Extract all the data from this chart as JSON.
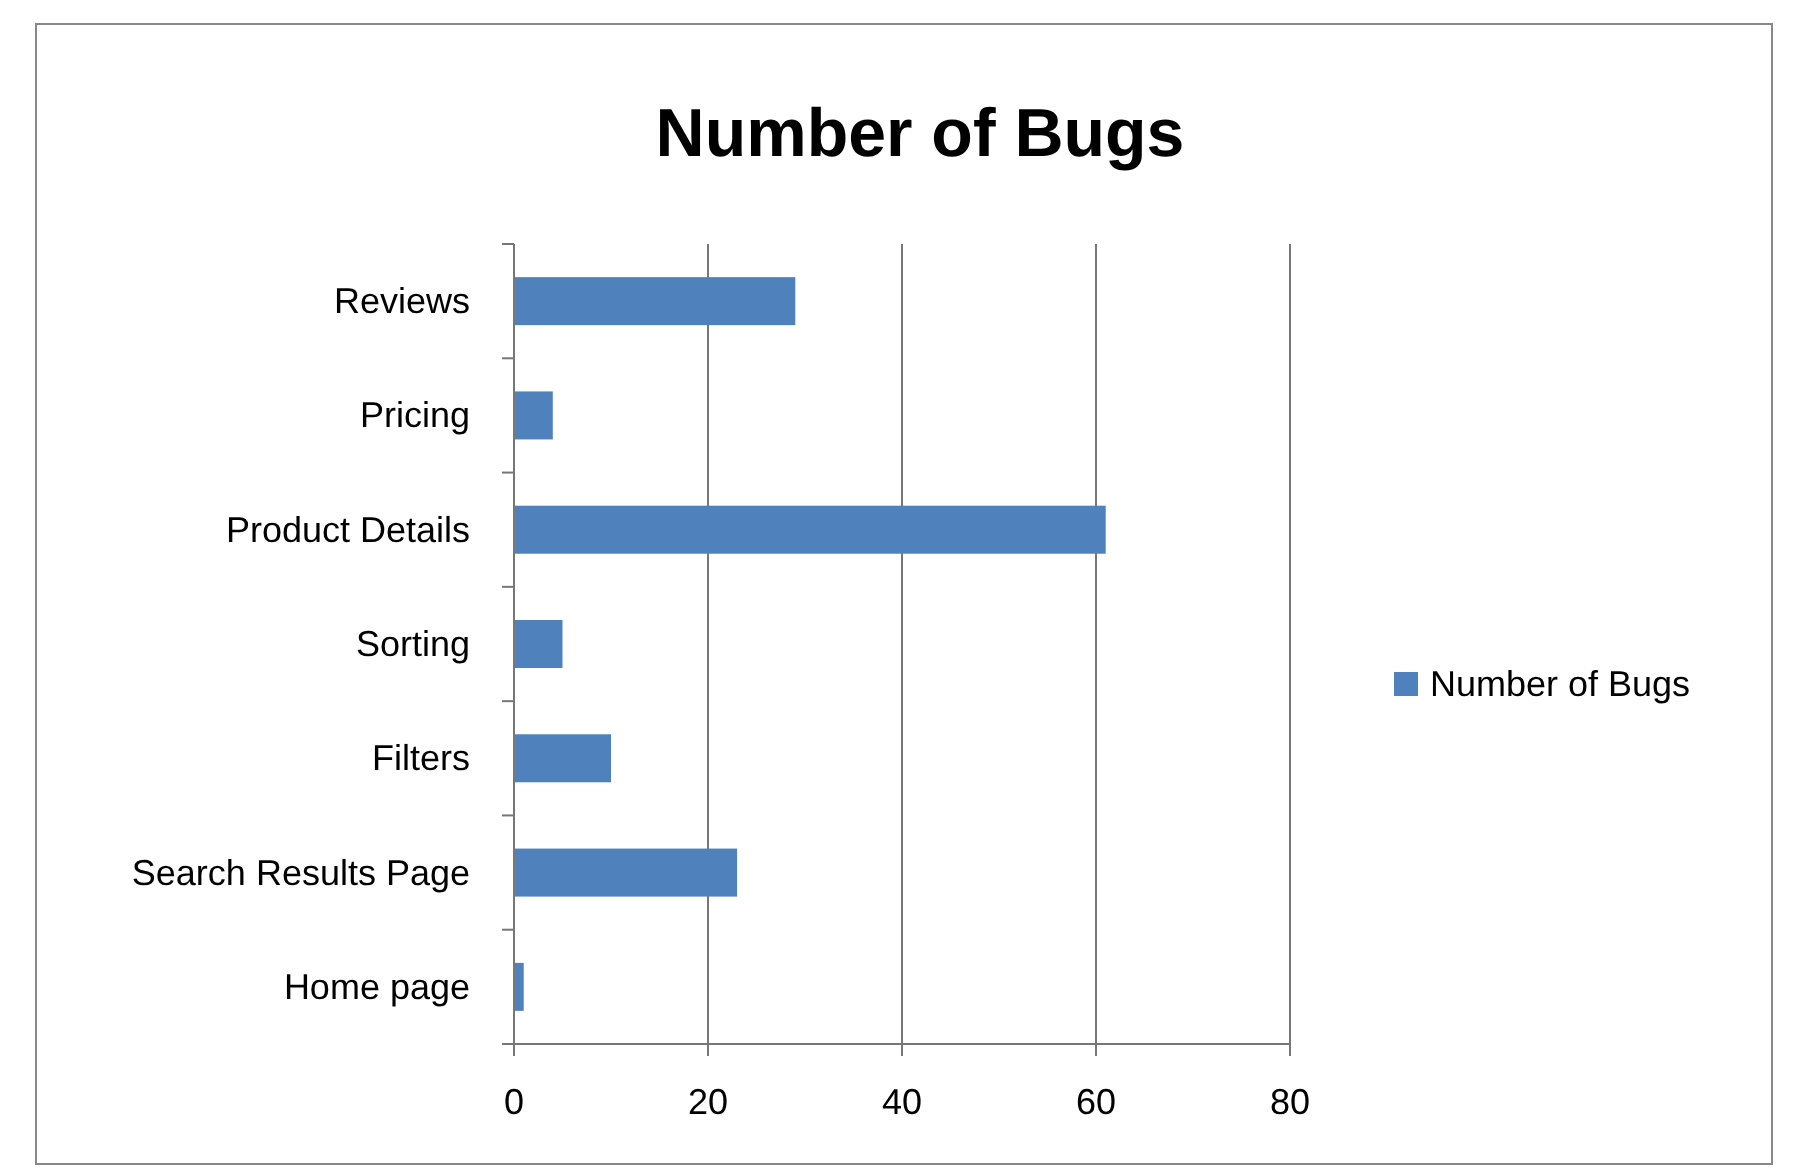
{
  "chart_data": {
    "type": "bar",
    "orientation": "horizontal",
    "title": "Number of Bugs",
    "categories": [
      "Reviews",
      "Pricing",
      "Product Details",
      "Sorting",
      "Filters",
      "Search Results Page",
      "Home page"
    ],
    "series": [
      {
        "name": "Number of Bugs",
        "color": "#4f81bd",
        "values": [
          29,
          4,
          61,
          5,
          10,
          23,
          1
        ]
      }
    ],
    "xlim": [
      0,
      80
    ],
    "xticks": [
      0,
      20,
      40,
      60,
      80
    ],
    "grid": "x",
    "legend": "right"
  }
}
